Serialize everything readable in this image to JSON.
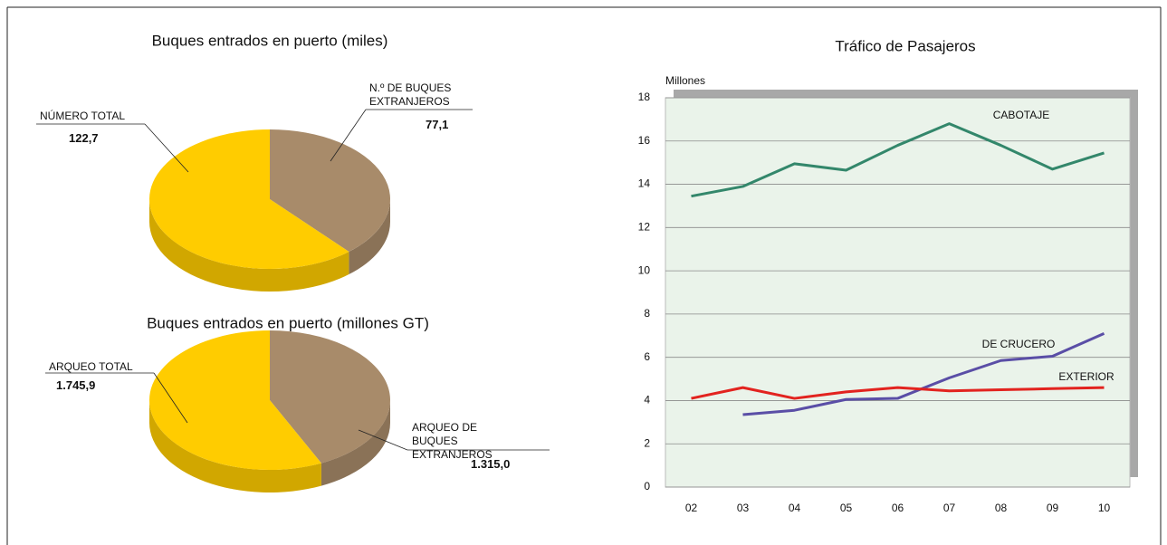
{
  "chart_data": [
    {
      "type": "pie",
      "title": "Buques entrados en puerto (miles)",
      "categories": [
        "NÚMERO TOTAL",
        "N.º DE BUQUES EXTRANJEROS"
      ],
      "values": [
        122.7,
        77.1
      ],
      "value_labels": [
        "122,7",
        "77,1"
      ],
      "colors": [
        "#ffcc00",
        "#a88b6a"
      ]
    },
    {
      "type": "pie",
      "title": "Buques entrados en puerto (millones GT)",
      "categories": [
        "ARQUEO TOTAL",
        "ARQUEO DE BUQUES EXTRANJEROS"
      ],
      "values": [
        1745.9,
        1315.0
      ],
      "value_labels": [
        "1.745,9",
        "1.315,0"
      ],
      "colors": [
        "#ffcc00",
        "#a88b6a"
      ]
    },
    {
      "type": "line",
      "title": "Tráfico de Pasajeros",
      "y_label": "Millones",
      "categories": [
        "02",
        "03",
        "04",
        "05",
        "06",
        "07",
        "08",
        "09",
        "10"
      ],
      "ylim": [
        0,
        18
      ],
      "yticks": [
        0,
        2,
        4,
        6,
        8,
        10,
        12,
        14,
        16,
        18
      ],
      "grid": true,
      "series": [
        {
          "name": "CABOTAJE",
          "color": "#33876b",
          "values": [
            13.45,
            13.9,
            14.95,
            14.65,
            15.8,
            16.8,
            15.8,
            14.7,
            15.45
          ]
        },
        {
          "name": "DE CRUCERO",
          "color": "#5a4ea6",
          "values": [
            null,
            3.35,
            3.55,
            4.05,
            4.1,
            5.05,
            5.85,
            6.05,
            7.1
          ]
        },
        {
          "name": "EXTERIOR",
          "color": "#e2231f",
          "values": [
            4.1,
            4.6,
            4.1,
            4.4,
            4.6,
            4.45,
            4.5,
            4.55,
            4.6
          ]
        }
      ]
    }
  ]
}
